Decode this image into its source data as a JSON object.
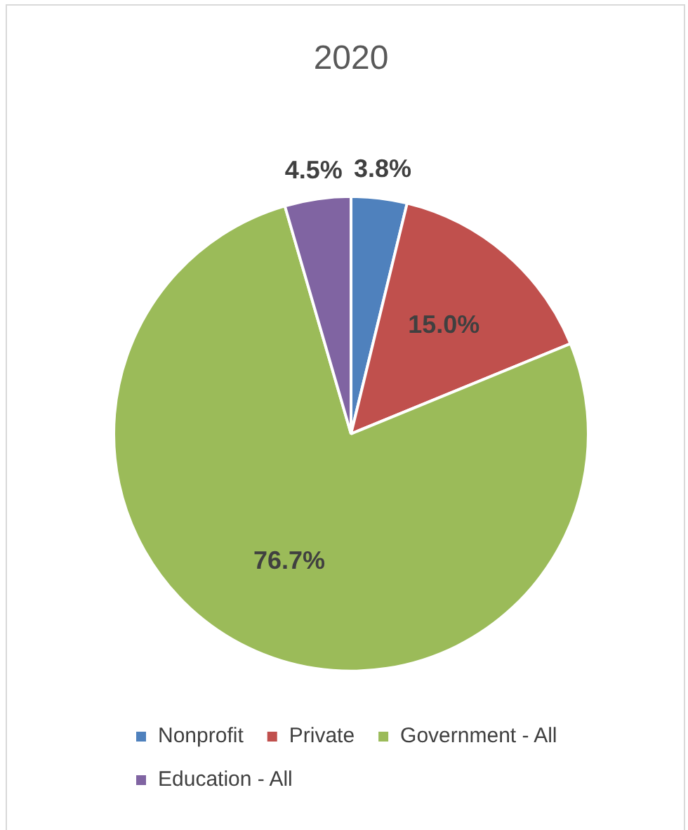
{
  "chart_data": {
    "type": "pie",
    "title": "2020",
    "categories": [
      "Nonprofit",
      "Private",
      "Government - All",
      "Education - All"
    ],
    "values": [
      3.8,
      15.0,
      76.7,
      4.5
    ],
    "colors": [
      "#4f81bd",
      "#c0504d",
      "#9bbb59",
      "#8064a2"
    ],
    "value_labels": [
      "3.8%",
      "15.0%",
      "76.7%",
      "4.5%"
    ],
    "legend": "bottom"
  }
}
